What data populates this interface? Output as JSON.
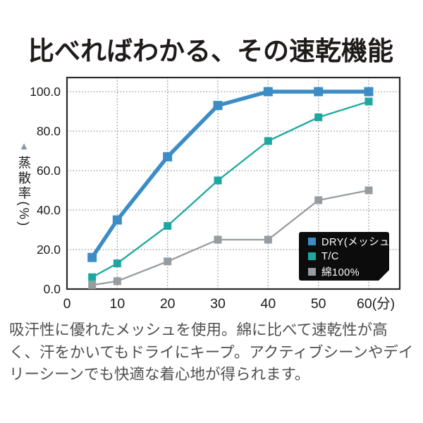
{
  "title": "比べればわかる、その速乾機能",
  "description": {
    "lines": [
      "吸汗性に優れたメッシュを使用。綿に比べて速乾性が高",
      "く、汗をかいてもドライにキープ。アクティブシーンやデイ",
      "リーシーンでも快適な着心地が得られます。"
    ]
  },
  "chart_data": {
    "type": "line",
    "x": [
      5,
      10,
      20,
      30,
      40,
      50,
      60
    ],
    "series": [
      {
        "key": "dry",
        "name": "DRY(メッシュ)",
        "color": "#3c8dc5",
        "line_width": 5.5,
        "marker_size": 13,
        "values": [
          16,
          35,
          67,
          93,
          100,
          100,
          100
        ]
      },
      {
        "key": "tc",
        "name": "T/C",
        "color": "#1ca8a1",
        "line_width": 2.3,
        "marker_size": 11,
        "values": [
          6,
          13,
          32,
          55,
          75,
          87,
          95
        ]
      },
      {
        "key": "cotton",
        "name": "綿100%",
        "color": "#979ca0",
        "line_width": 2.3,
        "marker_size": 11,
        "values": [
          2,
          4,
          14,
          25,
          25,
          45,
          50
        ]
      }
    ],
    "ylabel": "蒸散率(%)",
    "ylabel_marker": "▲",
    "xlabel_unit": "(分)",
    "xticks": [
      0,
      10,
      20,
      30,
      40,
      50,
      60
    ],
    "xtick_labels": [
      "0",
      "10",
      "20",
      "30",
      "40",
      "50",
      "60(分)"
    ],
    "yticks": [
      0,
      20,
      40,
      60,
      80,
      100
    ],
    "ytick_labels": [
      "0.0",
      "20.0",
      "40.0",
      "60.0",
      "80.0",
      "100.0"
    ],
    "xlim": [
      0,
      66
    ],
    "ylim": [
      0,
      107
    ],
    "grid": true,
    "grid_color": "#979797",
    "axis_color": "#2d2a28",
    "tick_text_color": "#1c1c1c",
    "legend_position": "lower-right",
    "legend_bg": "#0c0c0c",
    "legend_text_color": "#ffffff"
  }
}
